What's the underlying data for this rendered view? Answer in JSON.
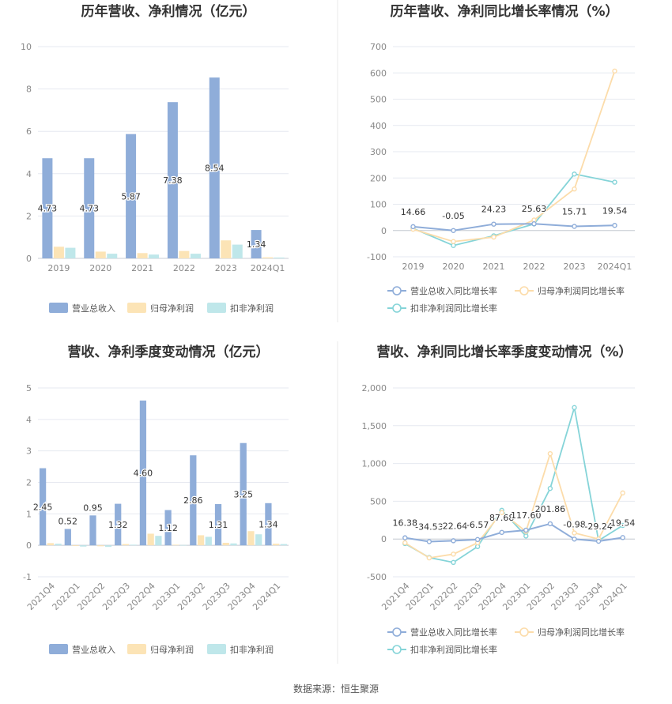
{
  "source_note": "数据来源：恒生聚源",
  "colors": {
    "revenue": "#8fadd9",
    "net_profit": "#fce4b6",
    "deducted_profit": "#bfe7ea",
    "revenue_line": "#8fadd9",
    "net_profit_line": "#fcdcaa",
    "deducted_profit_line": "#85d4d8",
    "grid": "#e6e9f0",
    "divider": "#e8e8e8"
  },
  "chart_data": [
    {
      "type": "bar",
      "title": "历年营收、净利情况（亿元）",
      "categories": [
        "2019",
        "2020",
        "2021",
        "2022",
        "2023",
        "2024Q1"
      ],
      "ylim": [
        0,
        10
      ],
      "yticks": [
        0,
        2,
        4,
        6,
        8,
        10
      ],
      "legend_position": "bottom",
      "series": [
        {
          "name": "营业总收入",
          "values": [
            4.73,
            4.73,
            5.87,
            7.38,
            8.54,
            1.34
          ],
          "labels": [
            "4.73",
            "4.73",
            "5.87",
            "7.38",
            "8.54",
            "1.34"
          ]
        },
        {
          "name": "归母净利润",
          "values": [
            0.55,
            0.32,
            0.25,
            0.35,
            0.85,
            0.05
          ]
        },
        {
          "name": "扣非净利润",
          "values": [
            0.5,
            0.22,
            0.18,
            0.22,
            0.65,
            0.04
          ]
        }
      ]
    },
    {
      "type": "line",
      "title": "历年营收、净利同比增长率情况（%）",
      "categories": [
        "2019",
        "2020",
        "2021",
        "2022",
        "2023",
        "2024Q1"
      ],
      "ylim": [
        -100,
        700
      ],
      "yticks": [
        -100,
        0,
        100,
        200,
        300,
        400,
        500,
        600,
        700
      ],
      "legend_position": "bottom",
      "series": [
        {
          "name": "营业总收入同比增长率",
          "values": [
            14.66,
            -0.05,
            24.23,
            25.63,
            15.71,
            19.54
          ],
          "labels": [
            "14.66",
            "-0.05",
            "24.23",
            "25.63",
            "15.71",
            "19.54"
          ]
        },
        {
          "name": "归母净利润同比增长率",
          "values": [
            5,
            -42,
            -25,
            40,
            158,
            607
          ]
        },
        {
          "name": "扣非净利润同比增长率",
          "values": [
            8,
            -57,
            -20,
            25,
            215,
            184
          ]
        }
      ]
    },
    {
      "type": "bar",
      "title": "营收、净利季度变动情况（亿元）",
      "categories": [
        "2021Q4",
        "2022Q1",
        "2022Q2",
        "2022Q3",
        "2022Q4",
        "2023Q1",
        "2023Q2",
        "2023Q3",
        "2023Q4",
        "2024Q1"
      ],
      "ylim": [
        -1,
        5
      ],
      "yticks": [
        -1,
        0,
        1,
        2,
        3,
        4,
        5
      ],
      "legend_position": "bottom",
      "series": [
        {
          "name": "营业总收入",
          "values": [
            2.45,
            0.52,
            0.95,
            1.32,
            4.6,
            1.12,
            2.86,
            1.31,
            3.25,
            1.34
          ],
          "labels": [
            "2.45",
            "0.52",
            "0.95",
            "1.32",
            "4.60",
            "1.12",
            "2.86",
            "1.31",
            "3.25",
            "1.34"
          ]
        },
        {
          "name": "归母净利润",
          "values": [
            0.07,
            -0.02,
            -0.03,
            0.04,
            0.37,
            0.02,
            0.32,
            0.08,
            0.45,
            0.05
          ]
        },
        {
          "name": "扣非净利润",
          "values": [
            0.05,
            -0.04,
            -0.05,
            0.02,
            0.3,
            0.01,
            0.27,
            0.06,
            0.35,
            0.04
          ]
        }
      ]
    },
    {
      "type": "line",
      "title": "营收、净利同比增长率季度变动情况（%）",
      "categories": [
        "2021Q4",
        "2022Q1",
        "2022Q2",
        "2022Q3",
        "2022Q4",
        "2023Q1",
        "2023Q2",
        "2023Q3",
        "2023Q4",
        "2024Q1"
      ],
      "ylim": [
        -500,
        2000
      ],
      "yticks": [
        -500,
        0,
        500,
        1000,
        1500,
        2000
      ],
      "ytick_labels": [
        "-500",
        "0",
        "500",
        "1,000",
        "1,500",
        "2,000"
      ],
      "legend_position": "bottom",
      "series": [
        {
          "name": "营业总收入同比增长率",
          "values": [
            16.38,
            -34.53,
            -22.64,
            -6.57,
            87.68,
            117.6,
            201.86,
            -0.98,
            -29.24,
            19.54
          ],
          "labels": [
            "16.38",
            "-34.53",
            "-22.64",
            "-6.57",
            "87.68",
            "117.60",
            "201.86",
            "-0.98",
            "-29.24",
            "19.54"
          ]
        },
        {
          "name": "归母净利润同比增长率",
          "values": [
            -50,
            -250,
            -200,
            -50,
            350,
            100,
            1130,
            80,
            0,
            610
          ]
        },
        {
          "name": "扣非净利润同比增长率",
          "values": [
            -60,
            -245,
            -310,
            -100,
            380,
            40,
            670,
            1740,
            -20,
            180
          ]
        }
      ]
    }
  ]
}
